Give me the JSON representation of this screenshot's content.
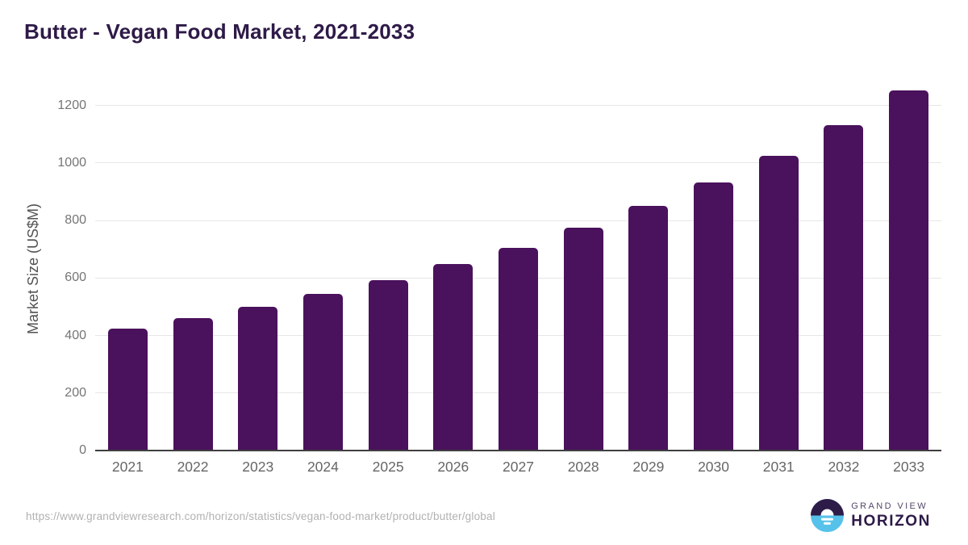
{
  "header": {
    "title": "Butter - Vegan Food Market, 2021-2033"
  },
  "chart_data": {
    "type": "bar",
    "title": "Butter - Vegan Food Market, 2021-2033",
    "categories": [
      "2021",
      "2022",
      "2023",
      "2024",
      "2025",
      "2026",
      "2027",
      "2028",
      "2029",
      "2030",
      "2031",
      "2032",
      "2033"
    ],
    "values": [
      425,
      461,
      501,
      544,
      592,
      648,
      705,
      774,
      850,
      932,
      1025,
      1132,
      1252
    ],
    "xlabel": "",
    "ylabel": "Market Size (US$M)",
    "ylim": [
      0,
      1200
    ],
    "yticks": [
      0,
      200,
      400,
      600,
      800,
      1000,
      1200
    ],
    "grid": true,
    "legend": "none"
  },
  "footer": {
    "source_url": "https://www.grandviewresearch.com/horizon/statistics/vegan-food-market/product/butter/global",
    "logo": {
      "line1": "GRAND VIEW",
      "line2": "HORIZON"
    }
  },
  "colors": {
    "bar": "#4a115c",
    "title": "#2e1a47",
    "gridline": "#e7e7e7",
    "axis_line": "#3f3f3f",
    "y_tick": "#757575",
    "x_tick": "#666666",
    "axis_title": "#525252",
    "url": "#b1b1b1",
    "logo_blue": "#56c2ea",
    "logo_dark": "#2e1c48",
    "logo_gray": "#55476b"
  }
}
